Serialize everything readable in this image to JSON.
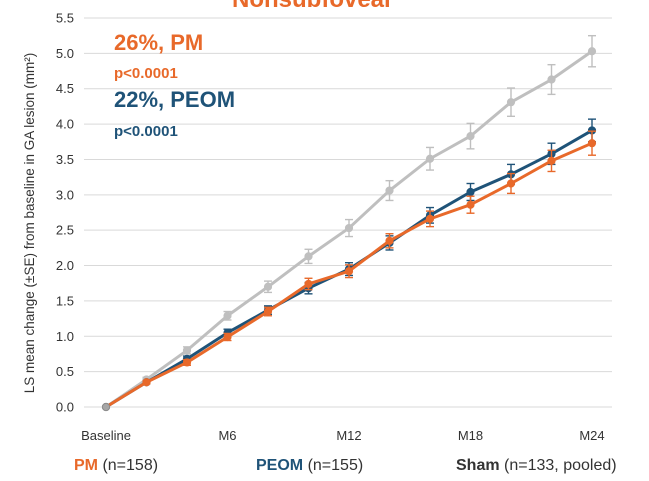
{
  "title_fragment": "Nonsubfoveal",
  "chart_data": {
    "type": "line",
    "categories": [
      "Baseline",
      "M2",
      "M4",
      "M6",
      "M8",
      "M10",
      "M12",
      "M14",
      "M16",
      "M18",
      "M20",
      "M22",
      "M24"
    ],
    "x_tick_labels": [
      "Baseline",
      "M6",
      "M12",
      "M18",
      "M24"
    ],
    "x_tick_label_indices": [
      0,
      3,
      6,
      9,
      12
    ],
    "ylabel": "LS mean change (±SE) from baseline in GA lesion (mm²)",
    "ylim": [
      0,
      5.5
    ],
    "yticks": [
      "0.0",
      "0.5",
      "1.0",
      "1.5",
      "2.0",
      "2.5",
      "3.0",
      "3.5",
      "4.0",
      "4.5",
      "5.0",
      "5.5"
    ],
    "grid": "horizontal",
    "series": [
      {
        "name": "Sham",
        "color": "#bfbfbf",
        "values": [
          0,
          0.39,
          0.8,
          1.29,
          1.7,
          2.13,
          2.53,
          3.06,
          3.51,
          3.83,
          4.31,
          4.63,
          5.03
        ],
        "se": [
          0,
          0.03,
          0.05,
          0.06,
          0.08,
          0.1,
          0.12,
          0.14,
          0.16,
          0.18,
          0.2,
          0.21,
          0.22
        ]
      },
      {
        "name": "PEOM",
        "color": "#1f5378",
        "values": [
          0,
          0.35,
          0.68,
          1.05,
          1.37,
          1.68,
          1.95,
          2.32,
          2.71,
          3.04,
          3.29,
          3.58,
          3.91
        ],
        "se": [
          0,
          0.02,
          0.04,
          0.05,
          0.06,
          0.08,
          0.09,
          0.1,
          0.11,
          0.12,
          0.14,
          0.15,
          0.16
        ]
      },
      {
        "name": "PM",
        "color": "#e8692a",
        "values": [
          0,
          0.35,
          0.63,
          0.99,
          1.35,
          1.74,
          1.92,
          2.35,
          2.66,
          2.86,
          3.16,
          3.48,
          3.73
        ],
        "se": [
          0,
          0.02,
          0.04,
          0.05,
          0.06,
          0.08,
          0.09,
          0.1,
          0.11,
          0.12,
          0.14,
          0.15,
          0.17
        ]
      }
    ],
    "annotations": [
      {
        "text": "26%, PM",
        "color": "#e8692a",
        "size": "big"
      },
      {
        "text": "p<0.0001",
        "color": "#e8692a",
        "size": "small"
      },
      {
        "text": "22%, PEOM",
        "color": "#1f5378",
        "size": "big"
      },
      {
        "text": "p<0.0001",
        "color": "#1f5378",
        "size": "small"
      }
    ]
  },
  "legend": {
    "pm": {
      "name": "PM",
      "n": "(n=158)",
      "color": "#e8692a"
    },
    "peom": {
      "name": "PEOM",
      "n": "(n=155)",
      "color": "#1f5378"
    },
    "sham": {
      "name": "Sham",
      "n": "(n=133, pooled)",
      "color": "#333333"
    }
  }
}
